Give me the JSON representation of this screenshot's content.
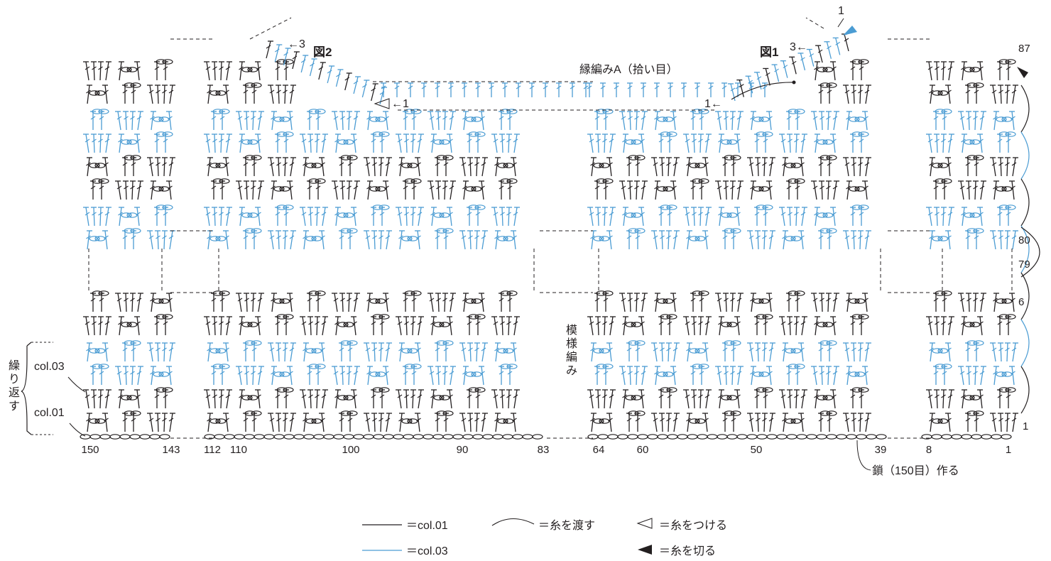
{
  "colors": {
    "col01": "#231f20",
    "col03": "#4b9cd3",
    "dash": "#231f20"
  },
  "labels": {
    "fig1": "図1",
    "fig2": "図2",
    "edging": "縁編みA（拾い目）",
    "pattern": "模様編み",
    "repeat": "繰り返す",
    "chain": "鎖（150目）作る",
    "col03": "col.03",
    "col01": "col.01",
    "fig1_top": "1",
    "fig1_arrow3": "3←",
    "fig1_arrow1": "1←",
    "fig2_arrow3": "←3",
    "fig2_arrow1": "←1"
  },
  "bottom_stitch_numbers": [
    "150",
    "143",
    "112",
    "110",
    "100",
    "90",
    "83",
    "64",
    "60",
    "50",
    "39",
    "8",
    "1"
  ],
  "row_numbers": [
    "87",
    "80",
    "79",
    "6",
    "1"
  ],
  "legend": {
    "col01": "＝col.01",
    "col03": "＝col.03",
    "carry": "＝糸を渡す",
    "attach": "＝糸をつける",
    "cut": "＝糸を切る"
  }
}
